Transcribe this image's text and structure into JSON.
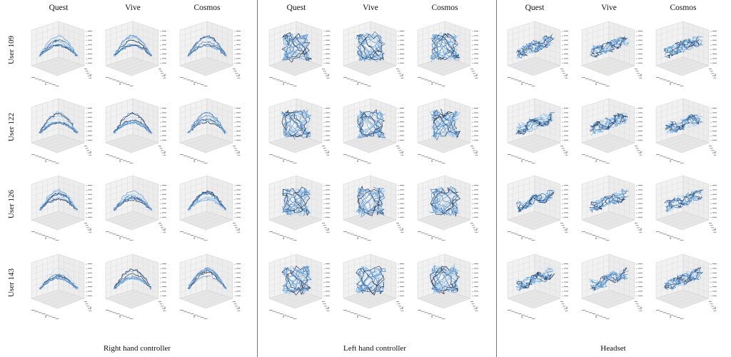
{
  "chart_data": {
    "type": "3d-trajectory-grid",
    "devices": [
      "Quest",
      "Vive",
      "Cosmos"
    ],
    "users": [
      "User\n109",
      "User\n122",
      "User\n126",
      "User\n143"
    ],
    "user_labels": [
      {
        "line1": "User",
        "line2": "109"
      },
      {
        "line1": "User",
        "line2": "122"
      },
      {
        "line1": "User",
        "line2": "126"
      },
      {
        "line1": "User",
        "line2": "143"
      }
    ],
    "groups": [
      "Right hand controller",
      "Left hand controller",
      "Headset"
    ],
    "axis_labels": {
      "x": "x",
      "y": "y",
      "z": "z"
    },
    "trajectory_colors": [
      "#1f2a44",
      "#2f6fb5",
      "#4f93d6",
      "#8bbde8",
      "#b9d8f2"
    ],
    "grid": true
  }
}
